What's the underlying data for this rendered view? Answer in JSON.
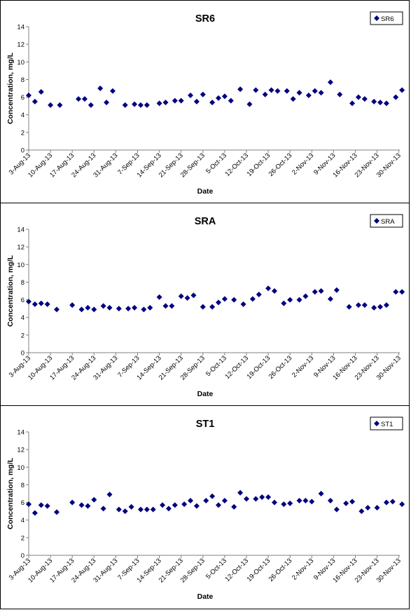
{
  "colors": {
    "marker": "#000080",
    "axis": "#808080",
    "frame": "#000000"
  },
  "xticks": [
    "3-Aug-13",
    "10-Aug-13",
    "17-Aug-13",
    "24-Aug-13",
    "31-Aug-13",
    "7-Sep-13",
    "14-Sep-13",
    "21-Sep-13",
    "28-Sep-13",
    "5-Oct-13",
    "12-Oct-13",
    "19-Oct-13",
    "26-Oct-13",
    "2-Nov-13",
    "9-Nov-13",
    "16-Nov-13",
    "23-Nov-13",
    "30-Nov-13"
  ],
  "chart_data": [
    {
      "type": "scatter",
      "title": "SR6",
      "xlabel": "Date",
      "ylabel": "Concentration, mg/L",
      "ylim": [
        0,
        14
      ],
      "yticks": [
        "0",
        "2",
        "4",
        "6",
        "8",
        "10",
        "12",
        "14"
      ],
      "grid": false,
      "legend_position": "top-right",
      "xlim": [
        "2013-08-03",
        "2013-12-01"
      ],
      "series": [
        {
          "name": "SR6",
          "x": [
            "2013-08-03",
            "2013-08-05",
            "2013-08-07",
            "2013-08-10",
            "2013-08-13",
            "2013-08-19",
            "2013-08-21",
            "2013-08-23",
            "2013-08-26",
            "2013-08-28",
            "2013-08-30",
            "2013-09-03",
            "2013-09-06",
            "2013-09-08",
            "2013-09-10",
            "2013-09-14",
            "2013-09-16",
            "2013-09-19",
            "2013-09-21",
            "2013-09-24",
            "2013-09-26",
            "2013-09-28",
            "2013-10-01",
            "2013-10-03",
            "2013-10-05",
            "2013-10-07",
            "2013-10-10",
            "2013-10-13",
            "2013-10-15",
            "2013-10-18",
            "2013-10-20",
            "2013-10-22",
            "2013-10-25",
            "2013-10-27",
            "2013-10-29",
            "2013-11-01",
            "2013-11-03",
            "2013-11-05",
            "2013-11-08",
            "2013-11-11",
            "2013-11-15",
            "2013-11-17",
            "2013-11-19",
            "2013-11-22",
            "2013-11-24",
            "2013-11-26",
            "2013-11-29",
            "2013-12-01"
          ],
          "y": [
            6.2,
            5.5,
            6.6,
            5.1,
            5.1,
            5.8,
            5.8,
            5.1,
            7.0,
            5.4,
            6.7,
            5.1,
            5.2,
            5.1,
            5.1,
            5.3,
            5.4,
            5.6,
            5.6,
            6.2,
            5.5,
            6.3,
            5.4,
            5.9,
            6.1,
            5.6,
            6.9,
            5.2,
            6.8,
            6.3,
            6.8,
            6.7,
            6.7,
            5.8,
            6.5,
            6.2,
            6.7,
            6.5,
            7.7,
            6.3,
            5.3,
            6.0,
            5.8,
            5.5,
            5.4,
            5.3,
            6.0,
            6.8
          ]
        }
      ]
    },
    {
      "type": "scatter",
      "title": "SRA",
      "xlabel": "Date",
      "ylabel": "Concentration, mg/L",
      "ylim": [
        0,
        14
      ],
      "yticks": [
        "0",
        "2",
        "4",
        "6",
        "8",
        "10",
        "12",
        "14"
      ],
      "grid": false,
      "legend_position": "top-right",
      "xlim": [
        "2013-08-03",
        "2013-12-01"
      ],
      "series": [
        {
          "name": "SRA",
          "x": [
            "2013-08-03",
            "2013-08-05",
            "2013-08-07",
            "2013-08-09",
            "2013-08-12",
            "2013-08-17",
            "2013-08-20",
            "2013-08-22",
            "2013-08-24",
            "2013-08-27",
            "2013-08-29",
            "2013-09-01",
            "2013-09-04",
            "2013-09-06",
            "2013-09-09",
            "2013-09-11",
            "2013-09-14",
            "2013-09-16",
            "2013-09-18",
            "2013-09-21",
            "2013-09-23",
            "2013-09-25",
            "2013-09-28",
            "2013-10-01",
            "2013-10-03",
            "2013-10-05",
            "2013-10-08",
            "2013-10-11",
            "2013-10-14",
            "2013-10-16",
            "2013-10-19",
            "2013-10-21",
            "2013-10-24",
            "2013-10-26",
            "2013-10-29",
            "2013-10-31",
            "2013-11-03",
            "2013-11-05",
            "2013-11-08",
            "2013-11-10",
            "2013-11-14",
            "2013-11-17",
            "2013-11-19",
            "2013-11-22",
            "2013-11-24",
            "2013-11-26",
            "2013-11-29",
            "2013-12-01"
          ],
          "y": [
            5.8,
            5.5,
            5.6,
            5.5,
            4.9,
            5.4,
            4.9,
            5.1,
            4.9,
            5.3,
            5.1,
            5.0,
            5.0,
            5.1,
            4.9,
            5.1,
            6.3,
            5.3,
            5.3,
            6.4,
            6.2,
            6.5,
            5.2,
            5.2,
            5.7,
            6.1,
            6.0,
            5.5,
            6.1,
            6.6,
            7.3,
            7.0,
            5.6,
            6.0,
            6.0,
            6.4,
            6.9,
            7.0,
            6.1,
            7.1,
            5.2,
            5.4,
            5.4,
            5.1,
            5.2,
            5.4,
            6.9,
            6.9
          ]
        }
      ]
    },
    {
      "type": "scatter",
      "title": "ST1",
      "xlabel": "Date",
      "ylabel": "Concentration, mg/L",
      "ylim": [
        0,
        14
      ],
      "yticks": [
        "0",
        "2",
        "4",
        "6",
        "8",
        "10",
        "12",
        "14"
      ],
      "grid": false,
      "legend_position": "top-right",
      "xlim": [
        "2013-08-03",
        "2013-12-01"
      ],
      "series": [
        {
          "name": "ST1",
          "x": [
            "2013-08-03",
            "2013-08-05",
            "2013-08-07",
            "2013-08-09",
            "2013-08-12",
            "2013-08-17",
            "2013-08-20",
            "2013-08-22",
            "2013-08-24",
            "2013-08-27",
            "2013-08-29",
            "2013-09-01",
            "2013-09-03",
            "2013-09-05",
            "2013-09-08",
            "2013-09-10",
            "2013-09-12",
            "2013-09-15",
            "2013-09-17",
            "2013-09-19",
            "2013-09-22",
            "2013-09-24",
            "2013-09-26",
            "2013-09-29",
            "2013-10-01",
            "2013-10-03",
            "2013-10-05",
            "2013-10-08",
            "2013-10-10",
            "2013-10-12",
            "2013-10-15",
            "2013-10-17",
            "2013-10-19",
            "2013-10-21",
            "2013-10-24",
            "2013-10-26",
            "2013-10-29",
            "2013-10-31",
            "2013-11-02",
            "2013-11-05",
            "2013-11-08",
            "2013-11-10",
            "2013-11-13",
            "2013-11-15",
            "2013-11-18",
            "2013-11-20",
            "2013-11-23",
            "2013-11-26",
            "2013-11-28",
            "2013-12-01"
          ],
          "y": [
            5.8,
            4.8,
            5.7,
            5.6,
            4.9,
            6.0,
            5.7,
            5.6,
            6.3,
            5.3,
            6.9,
            5.2,
            5.0,
            5.5,
            5.2,
            5.2,
            5.2,
            5.7,
            5.3,
            5.7,
            5.8,
            6.2,
            5.6,
            6.2,
            6.7,
            5.7,
            6.2,
            5.5,
            7.1,
            6.4,
            6.4,
            6.6,
            6.6,
            6.0,
            5.8,
            5.9,
            6.2,
            6.2,
            6.1,
            7.0,
            6.2,
            5.2,
            5.9,
            6.1,
            5.0,
            5.4,
            5.4,
            6.0,
            6.1,
            5.8
          ]
        }
      ]
    }
  ]
}
